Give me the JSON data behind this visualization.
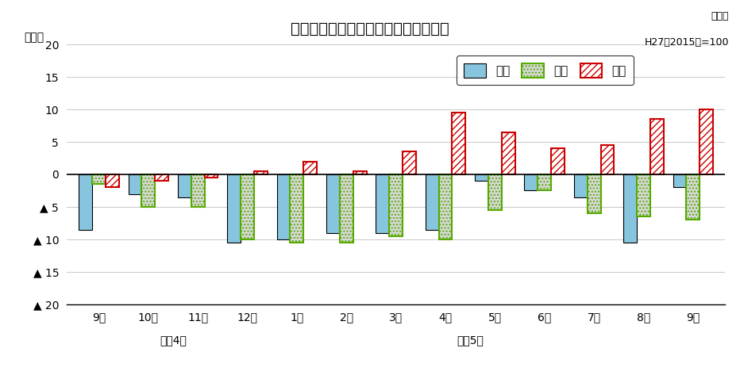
{
  "title": "生産・出荷・在庫の前年同月比の推移",
  "subtitle_line1": "原指数",
  "subtitle_line2": "H27（2015）=100",
  "ylabel": "（％）",
  "xlabel_note1": "令和4年",
  "xlabel_note2": "令和5年",
  "categories": [
    "9月",
    "10月",
    "11月",
    "12月",
    "1月",
    "2月",
    "3月",
    "4月",
    "5月",
    "6月",
    "7月",
    "8月",
    "9月"
  ],
  "production": [
    -8.5,
    -3.0,
    -3.5,
    -10.5,
    -10.0,
    -9.0,
    -9.0,
    -8.5,
    -1.0,
    -2.5,
    -3.5,
    -10.5,
    -2.0
  ],
  "shipment": [
    -1.5,
    -5.0,
    -5.0,
    -10.0,
    -10.5,
    -10.5,
    -9.5,
    -10.0,
    -5.5,
    -2.5,
    -6.0,
    -6.5,
    -7.0
  ],
  "inventory": [
    -2.0,
    -1.0,
    -0.5,
    0.5,
    2.0,
    0.5,
    3.5,
    9.5,
    6.5,
    4.0,
    4.5,
    8.5,
    10.0
  ],
  "ylim": [
    -20,
    20
  ],
  "yticks": [
    -20,
    -15,
    -10,
    -5,
    0,
    5,
    10,
    15,
    20
  ],
  "production_color": "#87c4de",
  "production_edge": "#000000",
  "shipment_bg": "#d8d8d8",
  "shipment_edge": "#55aa00",
  "inventory_edge": "#cc0000",
  "legend_labels": [
    "生産",
    "出荷",
    "在庫"
  ],
  "bar_width": 0.27,
  "figsize": [
    9.32,
    4.68
  ],
  "dpi": 100
}
